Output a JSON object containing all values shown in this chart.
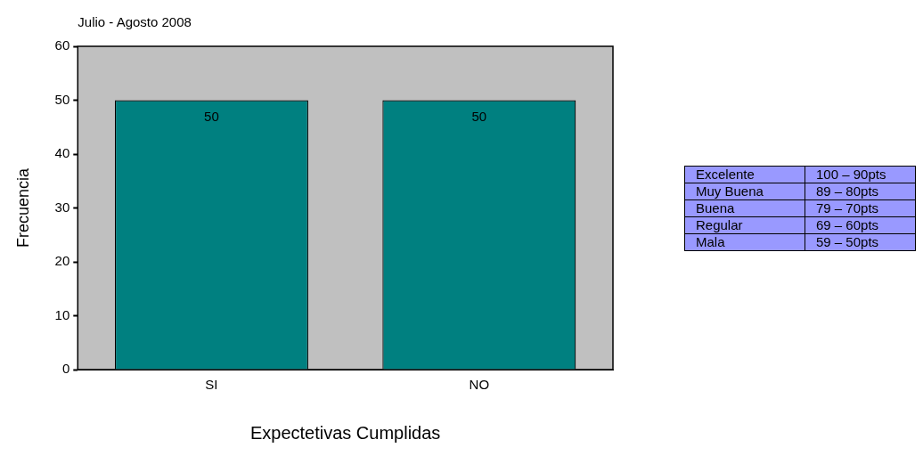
{
  "chart_data": {
    "type": "bar",
    "title": "Julio - Agosto 2008",
    "xlabel": "Expectetivas Cumplidas",
    "ylabel": "Frecuencia",
    "categories": [
      "SI",
      "NO"
    ],
    "values": [
      50,
      50
    ],
    "color": "#008080",
    "ylim": [
      0,
      60
    ],
    "yticks": [
      0,
      10,
      20,
      30,
      40,
      50,
      60
    ],
    "grid": false,
    "legend": false,
    "data_labels": true,
    "annotations": [
      "Excelente",
      "100 – 90pts",
      "Muy Buena",
      "89 – 80pts",
      "Buena",
      "79 – 70pts",
      "Regular",
      "69 – 60pts",
      "Mala",
      "59 – 50pts"
    ]
  }
}
